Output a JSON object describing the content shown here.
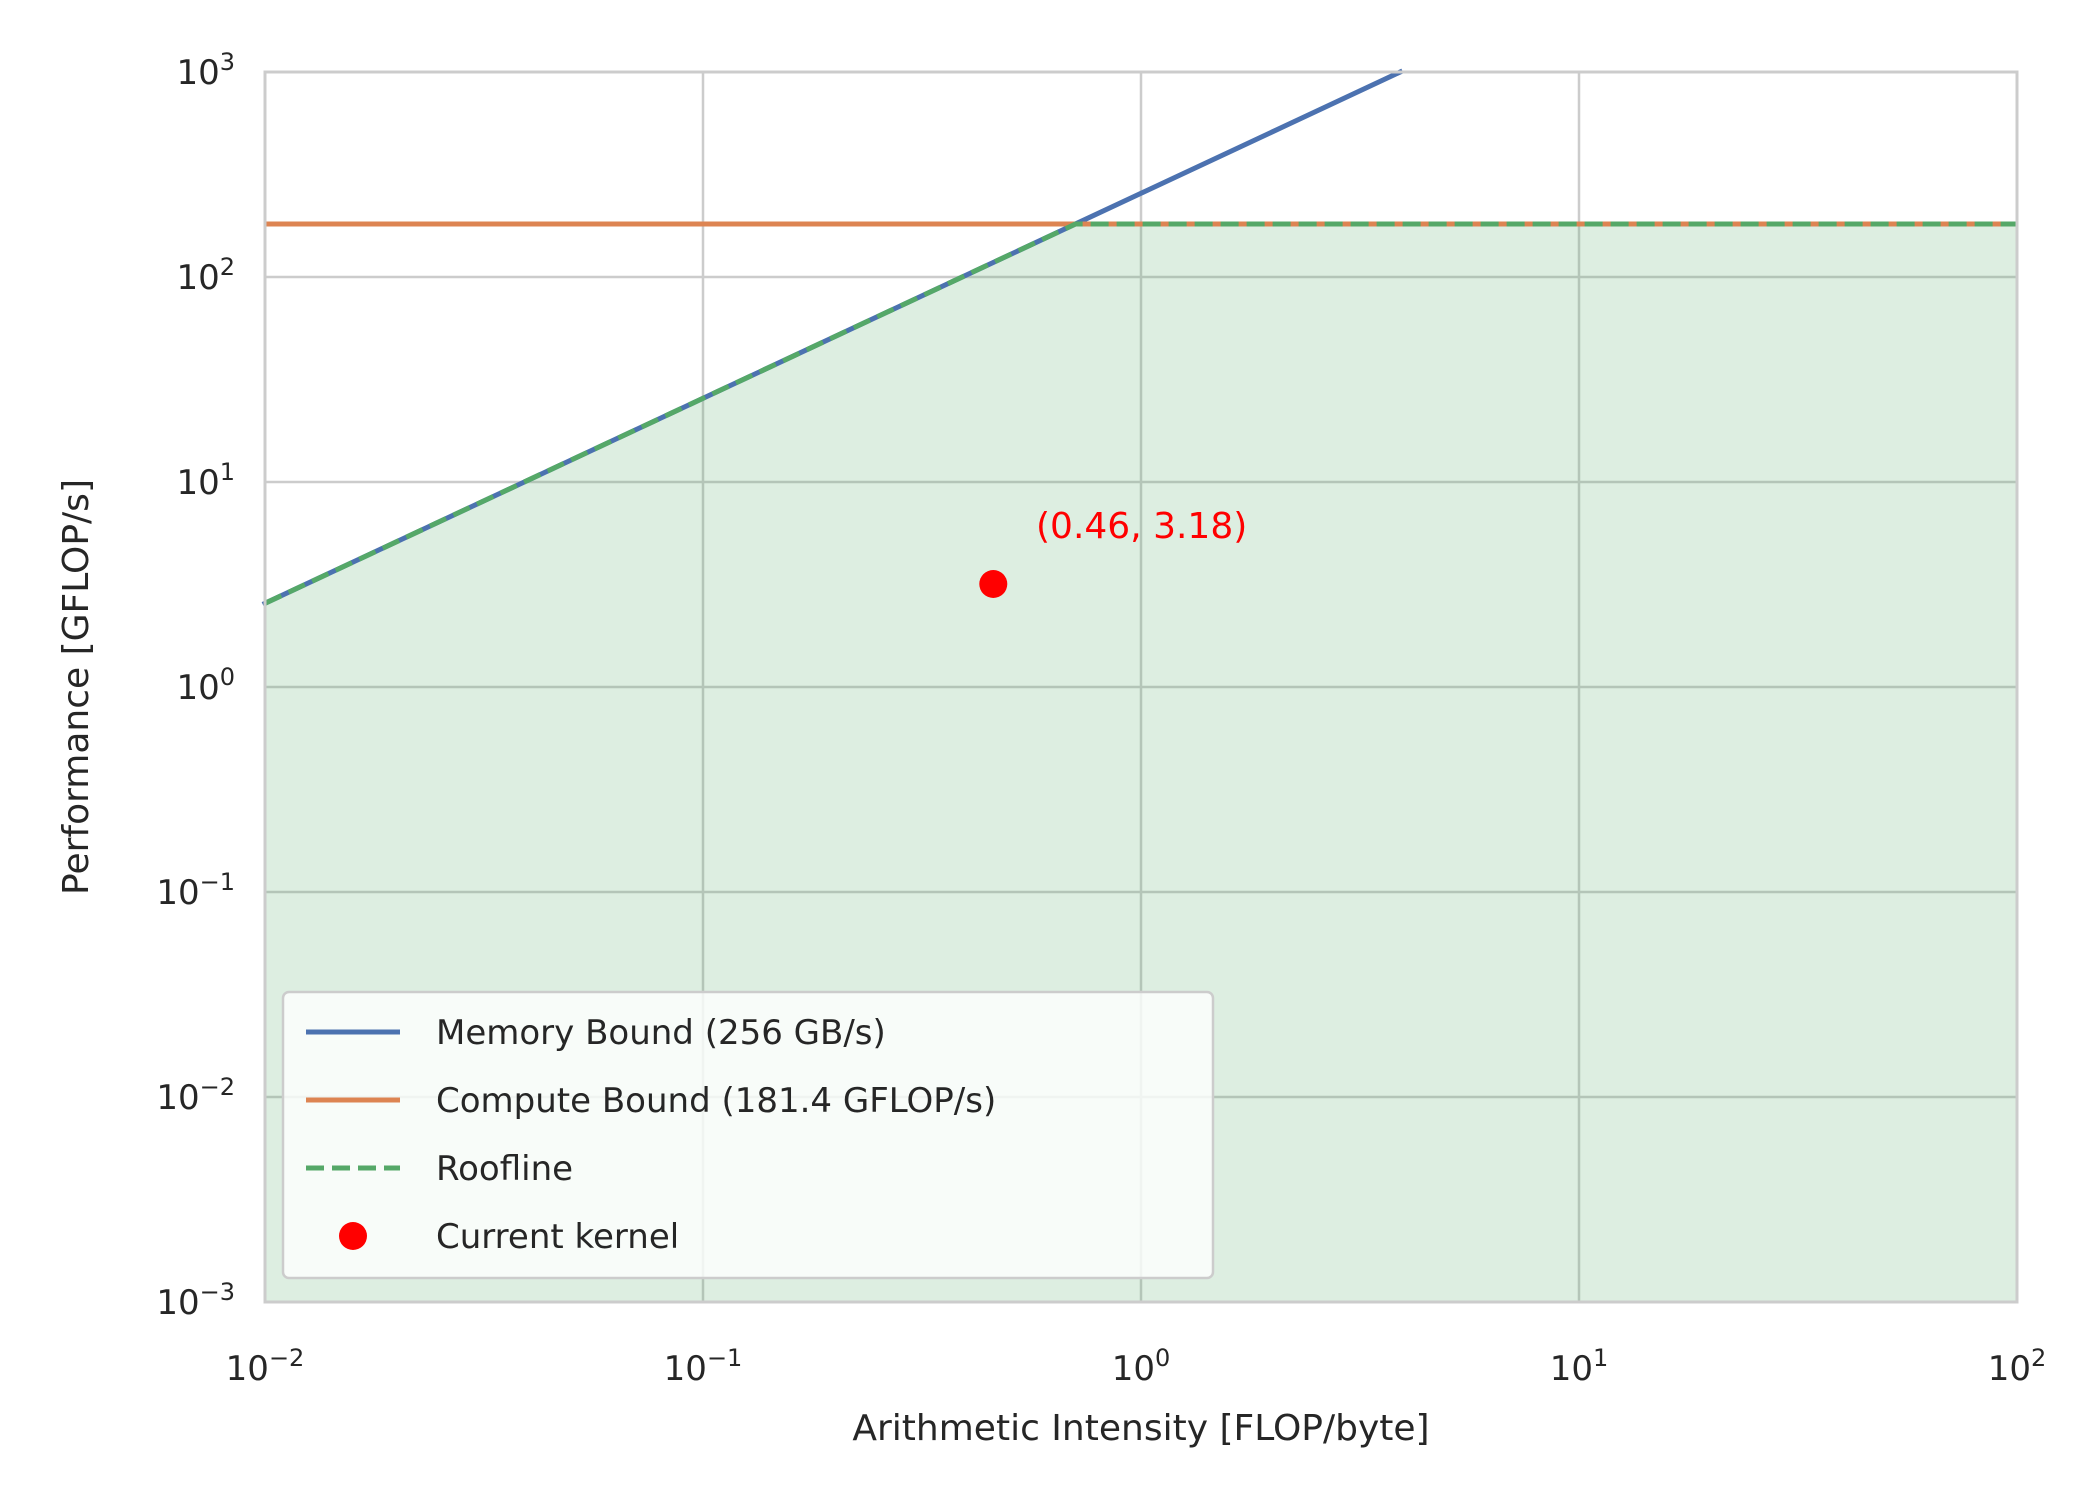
{
  "chart_data": {
    "type": "line",
    "xscale": "log",
    "yscale": "log",
    "xlim": [
      0.01,
      100
    ],
    "ylim": [
      0.001,
      1000
    ],
    "xlabel": "Arithmetic Intensity [FLOP/byte]",
    "ylabel": "Performance [GFLOP/s]",
    "x_ticks": [
      {
        "base": "10",
        "exp": "−2",
        "value": 0.01
      },
      {
        "base": "10",
        "exp": "−1",
        "value": 0.1
      },
      {
        "base": "10",
        "exp": "0",
        "value": 1
      },
      {
        "base": "10",
        "exp": "1",
        "value": 10
      },
      {
        "base": "10",
        "exp": "2",
        "value": 100
      }
    ],
    "y_ticks": [
      {
        "base": "10",
        "exp": "−3",
        "value": 0.001
      },
      {
        "base": "10",
        "exp": "−2",
        "value": 0.01
      },
      {
        "base": "10",
        "exp": "−1",
        "value": 0.1
      },
      {
        "base": "10",
        "exp": "0",
        "value": 1
      },
      {
        "base": "10",
        "exp": "1",
        "value": 10
      },
      {
        "base": "10",
        "exp": "2",
        "value": 100
      },
      {
        "base": "10",
        "exp": "3",
        "value": 1000
      }
    ],
    "grid": true,
    "legend_position": "lower-left",
    "memory_bandwidth": 256,
    "peak_compute": 181.4,
    "series": [
      {
        "name": "Memory Bound (256 GB/s)",
        "kind": "line",
        "color": "#4c72b0"
      },
      {
        "name": "Compute Bound (181.4 GFLOP/s)",
        "kind": "line",
        "color": "#dd8452"
      },
      {
        "name": "Roofline",
        "kind": "dashed",
        "color": "#55a868"
      },
      {
        "name": "Current kernel",
        "kind": "point",
        "color": "#ff0000",
        "x": 0.46,
        "y": 3.18
      }
    ],
    "fill_color": "#55a868",
    "annotation": "(0.46, 3.18)"
  }
}
